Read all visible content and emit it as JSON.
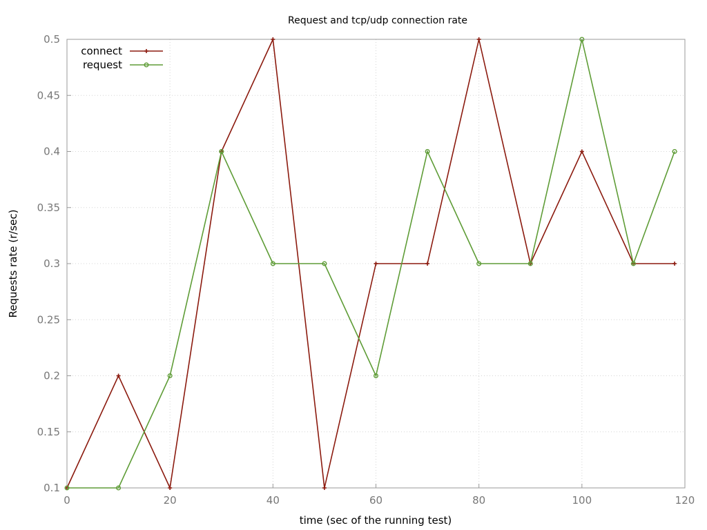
{
  "chart_data": {
    "type": "line",
    "title": "Request and tcp/udp connection rate",
    "xlabel": "time (sec of the running test)",
    "ylabel": "Requests rate (r/sec)",
    "xlim": [
      0,
      120
    ],
    "ylim": [
      0.1,
      0.5
    ],
    "xticks": [
      "0",
      "20",
      "40",
      "60",
      "80",
      "100",
      "120"
    ],
    "yticks": [
      "0.1",
      "0.15",
      "0.2",
      "0.25",
      "0.3",
      "0.35",
      "0.4",
      "0.45",
      "0.5"
    ],
    "grid": true,
    "legend_position": "top-left",
    "series": [
      {
        "name": "connect",
        "color": "#8b1a0e",
        "marker": "plus",
        "x": [
          0,
          10,
          20,
          30,
          40,
          50,
          60,
          70,
          80,
          90,
          100,
          110,
          118
        ],
        "y": [
          0.1,
          0.2,
          0.1,
          0.4,
          0.5,
          0.1,
          0.3,
          0.3,
          0.5,
          0.3,
          0.4,
          0.3,
          0.3
        ]
      },
      {
        "name": "request",
        "color": "#5e9c36",
        "marker": "circle",
        "x": [
          0,
          10,
          20,
          30,
          40,
          50,
          60,
          70,
          80,
          90,
          100,
          110,
          118
        ],
        "y": [
          0.1,
          0.1,
          0.2,
          0.4,
          0.3,
          0.3,
          0.2,
          0.4,
          0.3,
          0.3,
          0.5,
          0.3,
          0.4
        ]
      }
    ]
  }
}
